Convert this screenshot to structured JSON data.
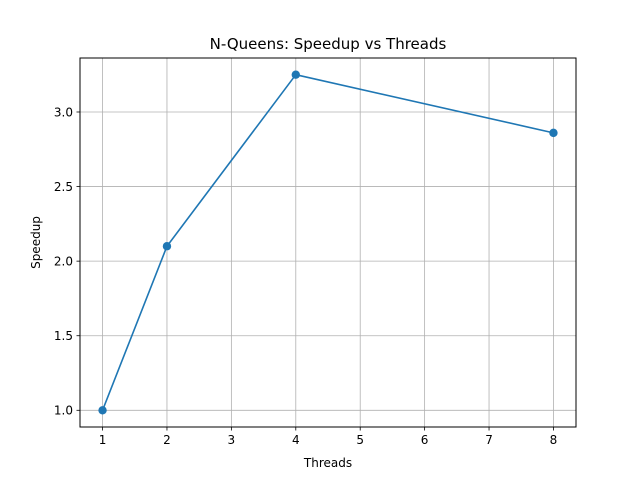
{
  "chart_data": {
    "type": "line",
    "title": "N-Queens: Speedup vs Threads",
    "xlabel": "Threads",
    "ylabel": "Speedup",
    "xlim": [
      0.65,
      8.35
    ],
    "ylim": [
      0.888,
      3.362
    ],
    "xticks": [
      1,
      2,
      3,
      4,
      5,
      6,
      7,
      8
    ],
    "xtick_labels": [
      "1",
      "2",
      "3",
      "4",
      "5",
      "6",
      "7",
      "8"
    ],
    "yticks": [
      1.0,
      1.5,
      2.0,
      2.5,
      3.0
    ],
    "ytick_labels": [
      "1.0",
      "1.5",
      "2.0",
      "2.5",
      "3.0"
    ],
    "grid": true,
    "series": [
      {
        "x": [
          1,
          2,
          4,
          8
        ],
        "y": [
          1.0,
          2.1,
          3.25,
          2.86
        ],
        "color": "#1f77b4",
        "marker": "circle"
      }
    ]
  }
}
